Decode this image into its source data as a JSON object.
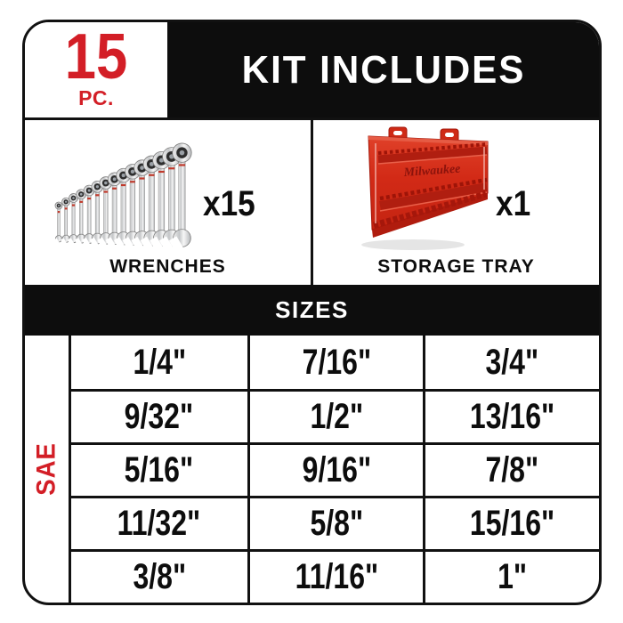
{
  "header": {
    "count": "15",
    "unit": "PC.",
    "title": "KIT INCLUDES"
  },
  "items": [
    {
      "qty": "x15",
      "label": "WRENCHES",
      "art": "wrench-set-image"
    },
    {
      "qty": "x1",
      "label": "STORAGE TRAY",
      "art": "storage-tray-image",
      "brand": "Milwaukee"
    }
  ],
  "sizes": {
    "heading": "SIZES",
    "system": "SAE",
    "rows": [
      [
        "1/4\"",
        "7/16\"",
        "3/4\""
      ],
      [
        "9/32\"",
        "1/2\"",
        "13/16\""
      ],
      [
        "5/16\"",
        "9/16\"",
        "7/8\""
      ],
      [
        "11/32\"",
        "5/8\"",
        "15/16\""
      ],
      [
        "3/8\"",
        "11/16\"",
        "1\""
      ]
    ]
  },
  "colors": {
    "brand_red": "#d31e26",
    "tray_red": "#d22a16",
    "black": "#0d0d0d",
    "white": "#ffffff",
    "chrome": "#d7d7d7"
  }
}
